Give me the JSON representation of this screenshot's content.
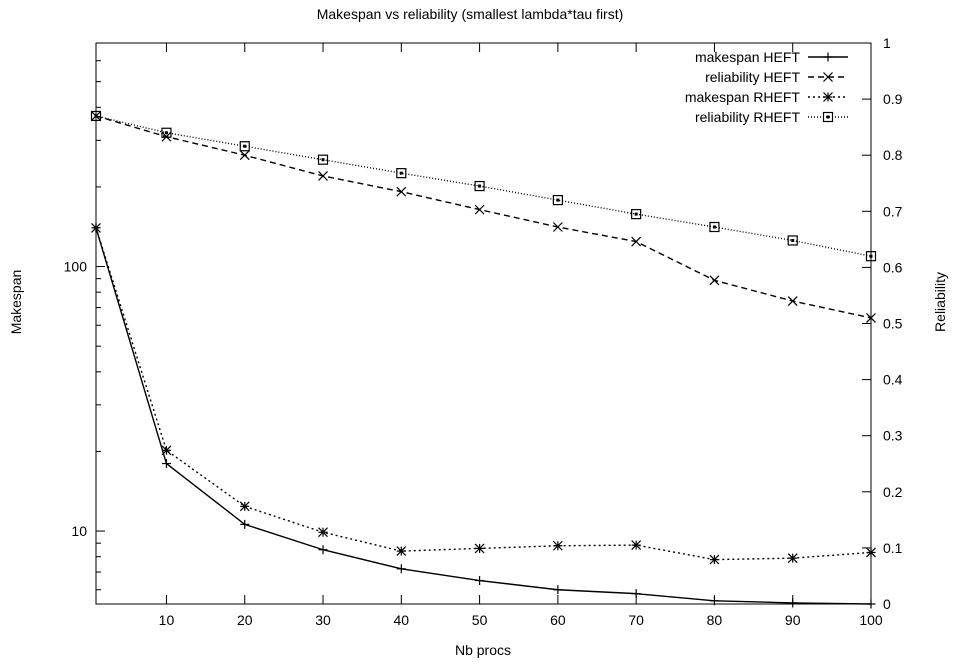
{
  "chart_data": {
    "type": "line",
    "title": "Makespan vs reliability (smallest lambda*tau first)",
    "xlabel": "Nb procs",
    "ylabel": "Makespan",
    "y2label": "Reliability",
    "xlim": [
      1,
      100
    ],
    "ylim": [
      5.3,
      700
    ],
    "yscale": "log",
    "y2lim": [
      0,
      1
    ],
    "x_ticks": [
      "10",
      "20",
      "30",
      "40",
      "50",
      "60",
      "70",
      "80",
      "90",
      "100"
    ],
    "y_ticks": [
      "10",
      "100"
    ],
    "y2_ticks": [
      "0",
      "0.1",
      "0.2",
      "0.3",
      "0.4",
      "0.5",
      "0.6",
      "0.7",
      "0.8",
      "0.9",
      "1"
    ],
    "grid": false,
    "legend_position": "top-right",
    "x": [
      1,
      10,
      20,
      30,
      40,
      50,
      60,
      70,
      80,
      90,
      100
    ],
    "series": [
      {
        "name": "makespan HEFT",
        "axis": "left",
        "marker": "plus",
        "dash": "solid",
        "values": [
          140,
          18,
          10.6,
          8.5,
          7.2,
          6.5,
          6.0,
          5.8,
          5.45,
          5.35,
          5.3
        ]
      },
      {
        "name": "reliability HEFT",
        "axis": "right",
        "marker": "x",
        "dash": "dashed",
        "values": [
          0.87,
          0.833,
          0.8,
          0.763,
          0.735,
          0.703,
          0.672,
          0.646,
          0.577,
          0.54,
          0.51
        ]
      },
      {
        "name": "makespan RHEFT",
        "axis": "left",
        "marker": "star",
        "dash": "dotted",
        "values": [
          140,
          20.2,
          12.4,
          9.9,
          8.4,
          8.6,
          8.8,
          8.85,
          7.8,
          7.9,
          8.3
        ]
      },
      {
        "name": "reliability RHEFT",
        "axis": "right",
        "marker": "box",
        "dash": "fine",
        "values": [
          0.87,
          0.84,
          0.816,
          0.792,
          0.768,
          0.745,
          0.72,
          0.695,
          0.672,
          0.648,
          0.62
        ]
      }
    ]
  }
}
